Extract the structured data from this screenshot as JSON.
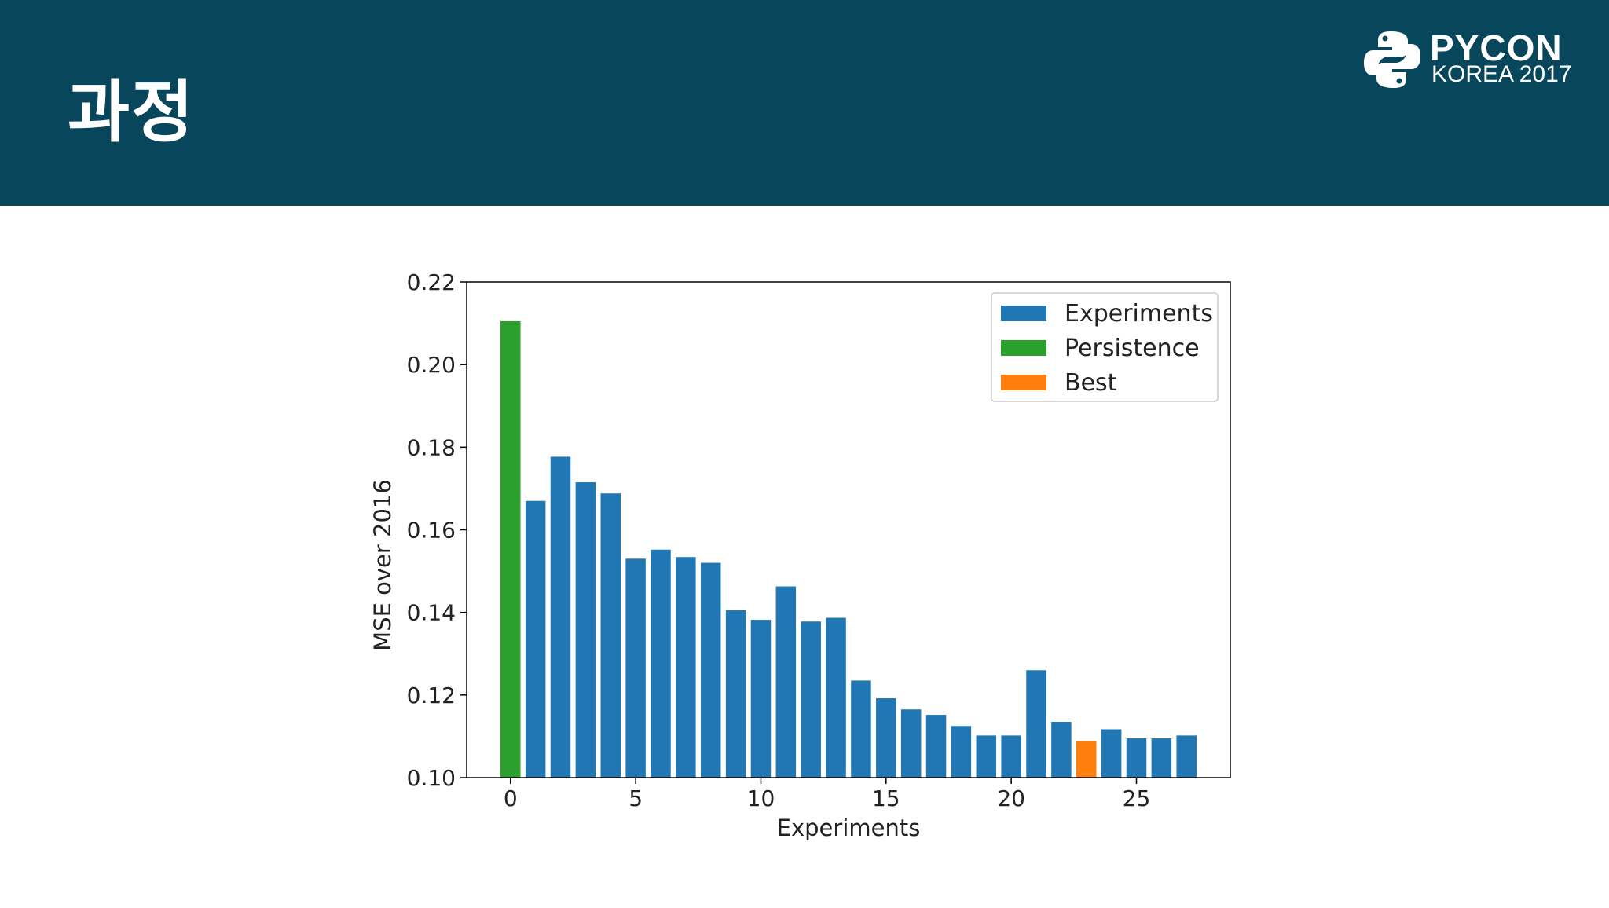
{
  "slide": {
    "title": "과정",
    "logo": {
      "line1": "PYCON",
      "line2": "KOREA 2017"
    }
  },
  "colors": {
    "header_bg": "#08475b",
    "experiments": "#2077b4",
    "persistence": "#2ca02c",
    "best": "#ff7f0e"
  },
  "chart_data": {
    "type": "bar",
    "xlabel": "Experiments",
    "ylabel": "MSE over 2016",
    "xlim": [
      -1.75,
      28.75
    ],
    "ylim": [
      0.1,
      0.22
    ],
    "xticks": [
      0,
      5,
      10,
      15,
      20,
      25
    ],
    "yticks": [
      "0.10",
      "0.12",
      "0.14",
      "0.16",
      "0.18",
      "0.20",
      "0.22"
    ],
    "legend_position": "top-right",
    "legend": [
      {
        "label": "Experiments",
        "key": "experiments"
      },
      {
        "label": "Persistence",
        "key": "persistence"
      },
      {
        "label": "Best",
        "key": "best"
      }
    ],
    "bars": [
      {
        "x": 0,
        "value": 0.2105,
        "series": "persistence"
      },
      {
        "x": 1,
        "value": 0.167,
        "series": "experiments"
      },
      {
        "x": 2,
        "value": 0.1777,
        "series": "experiments"
      },
      {
        "x": 3,
        "value": 0.1715,
        "series": "experiments"
      },
      {
        "x": 4,
        "value": 0.1688,
        "series": "experiments"
      },
      {
        "x": 5,
        "value": 0.153,
        "series": "experiments"
      },
      {
        "x": 6,
        "value": 0.1552,
        "series": "experiments"
      },
      {
        "x": 7,
        "value": 0.1534,
        "series": "experiments"
      },
      {
        "x": 8,
        "value": 0.152,
        "series": "experiments"
      },
      {
        "x": 9,
        "value": 0.1405,
        "series": "experiments"
      },
      {
        "x": 10,
        "value": 0.1382,
        "series": "experiments"
      },
      {
        "x": 11,
        "value": 0.1463,
        "series": "experiments"
      },
      {
        "x": 12,
        "value": 0.1378,
        "series": "experiments"
      },
      {
        "x": 13,
        "value": 0.1387,
        "series": "experiments"
      },
      {
        "x": 14,
        "value": 0.1235,
        "series": "experiments"
      },
      {
        "x": 15,
        "value": 0.1192,
        "series": "experiments"
      },
      {
        "x": 16,
        "value": 0.1165,
        "series": "experiments"
      },
      {
        "x": 17,
        "value": 0.1152,
        "series": "experiments"
      },
      {
        "x": 18,
        "value": 0.1125,
        "series": "experiments"
      },
      {
        "x": 19,
        "value": 0.1102,
        "series": "experiments"
      },
      {
        "x": 20,
        "value": 0.1102,
        "series": "experiments"
      },
      {
        "x": 21,
        "value": 0.126,
        "series": "experiments"
      },
      {
        "x": 22,
        "value": 0.1135,
        "series": "experiments"
      },
      {
        "x": 23,
        "value": 0.1088,
        "series": "best"
      },
      {
        "x": 24,
        "value": 0.1117,
        "series": "experiments"
      },
      {
        "x": 25,
        "value": 0.1095,
        "series": "experiments"
      },
      {
        "x": 26,
        "value": 0.1095,
        "series": "experiments"
      },
      {
        "x": 27,
        "value": 0.1102,
        "series": "experiments"
      }
    ]
  }
}
